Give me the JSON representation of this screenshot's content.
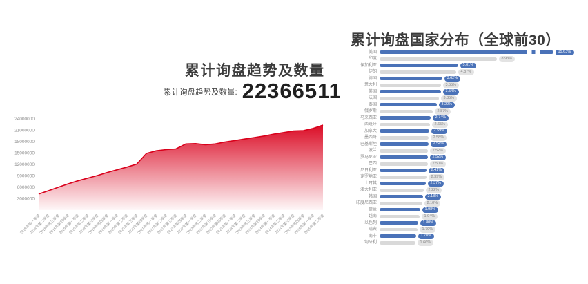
{
  "page": {
    "background": "#ffffff"
  },
  "colors": {
    "area_line": "#d9001b",
    "bar_blue": "#4a72b8",
    "bar_grey": "#d9d9d9",
    "badge_grey_bg": "#e3e3e3",
    "badge_grey_text": "#858585",
    "title_text": "#3b3b3b",
    "axis_text": "#9a9a9a"
  },
  "left_panel": {
    "title": "累计询盘趋势及数量",
    "stat_label": "累计询盘趋势及数量:",
    "stat_value": "22366511"
  },
  "right_panel": {
    "title": "累计询盘国家分布（全球前30）"
  },
  "chart_data": [
    {
      "type": "area",
      "title": "累计询盘趋势及数量",
      "x": [
        "2018年第一季度",
        "2018年第二季度",
        "2018年第三季度",
        "2018年第四季度",
        "2019年第一季度",
        "2019年第二季度",
        "2019年第三季度",
        "2019年第四季度",
        "2020年第一季度",
        "2020年第二季度",
        "2020年第三季度",
        "2020年第四季度",
        "2021年第一季度",
        "2021年第二季度",
        "2021年第三季度",
        "2021年第四季度",
        "2022年第一季度",
        "2022年第二季度",
        "2022年第三季度",
        "2022年第四季度",
        "2023年第一季度",
        "2023年第二季度",
        "2023年第三季度",
        "2023年第四季度",
        "2024年第一季度",
        "2024年第二季度",
        "2024年第三季度",
        "2024年第四季度",
        "2025年第一季度",
        "2025年第二季度"
      ],
      "values": [
        4200000,
        5100000,
        6000000,
        6900000,
        7700000,
        8400000,
        9100000,
        9900000,
        10600000,
        11300000,
        12100000,
        14900000,
        15600000,
        15900000,
        16100000,
        17400000,
        17500000,
        17200000,
        17400000,
        17900000,
        18300000,
        18700000,
        19100000,
        19500000,
        20000000,
        20400000,
        20800000,
        20900000,
        21500000,
        22366511
      ],
      "total": 22366511,
      "ylim": [
        0,
        24000000
      ],
      "yticks": [
        3000000,
        6000000,
        9000000,
        12000000,
        15000000,
        18000000,
        21000000,
        24000000
      ],
      "grid": false,
      "legend": "none",
      "xlabel": "",
      "ylabel": ""
    },
    {
      "type": "bar",
      "orientation": "horizontal",
      "title": "累计询盘国家分布（全球前30）",
      "categories": [
        "美国",
        "印度",
        "保加利亚",
        "伊朗",
        "德国",
        "意大利",
        "英国",
        "法国",
        "泰国",
        "俄罗斯",
        "马来西亚",
        "西班牙",
        "加拿大",
        "墨西哥",
        "巴基斯坦",
        "波兰",
        "罗马尼亚",
        "巴西",
        "尼日利亚",
        "克罗地亚",
        "土耳其",
        "澳大利亚",
        "韩国",
        "印度尼西亚",
        "荷兰",
        "越南",
        "以色列",
        "瑞典",
        "南非",
        "匈牙利"
      ],
      "values": [
        15.63,
        8.93,
        5.01,
        4.87,
        3.62,
        3.55,
        3.54,
        3.35,
        3.22,
        2.87,
        2.74,
        2.65,
        2.59,
        2.58,
        2.54,
        2.52,
        2.52,
        2.5,
        2.41,
        2.39,
        2.37,
        2.22,
        2.18,
        2.1,
        1.98,
        1.94,
        1.8,
        1.79,
        1.7,
        1.66
      ],
      "value_labels": [
        "15.63%",
        "8.93%",
        "5.01%",
        "4.87%",
        "3.62%",
        "3.55%",
        "3.54%",
        "3.35%",
        "3.22%",
        "2.87%",
        "2.74%",
        "2.65%",
        "2.59%",
        "2.58%",
        "2.54%",
        "2.52%",
        "2.52%",
        "2.50%",
        "2.41%",
        "2.39%",
        "2.37%",
        "2.22%",
        "2.18%",
        "2.10%",
        "1.98%",
        "1.94%",
        "1.80%",
        "1.79%",
        "1.70%",
        "1.66%"
      ],
      "unit": "%",
      "broken_bar_index": 0,
      "xlim": [
        0,
        16
      ],
      "legend": "none"
    }
  ]
}
